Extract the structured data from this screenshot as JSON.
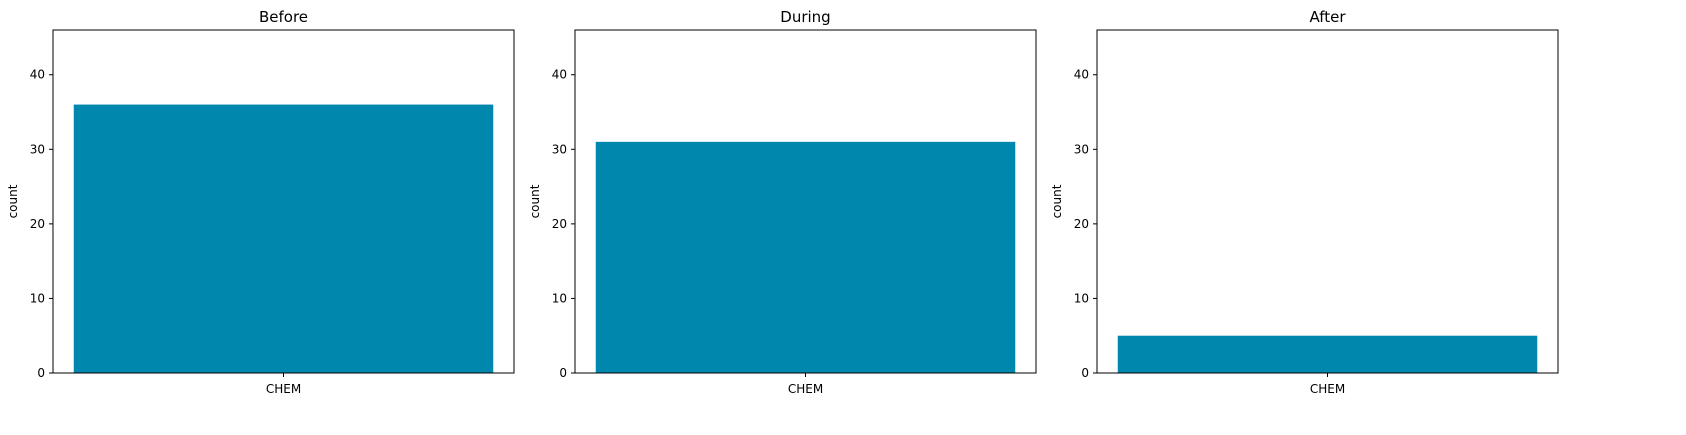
{
  "chart_data": [
    {
      "type": "bar",
      "title": "Before",
      "ylabel": "count",
      "xlabel": "",
      "categories": [
        "CHEM"
      ],
      "values": [
        36
      ],
      "ylim": [
        0,
        46
      ],
      "yticks": [
        0,
        10,
        20,
        30,
        40
      ],
      "color": "#0087ad",
      "grid": false
    },
    {
      "type": "bar",
      "title": "During",
      "ylabel": "count",
      "xlabel": "",
      "categories": [
        "CHEM"
      ],
      "values": [
        31
      ],
      "ylim": [
        0,
        46
      ],
      "yticks": [
        0,
        10,
        20,
        30,
        40
      ],
      "color": "#0087ad",
      "grid": false
    },
    {
      "type": "bar",
      "title": "After",
      "ylabel": "count",
      "xlabel": "",
      "categories": [
        "CHEM"
      ],
      "values": [
        5
      ],
      "ylim": [
        0,
        46
      ],
      "yticks": [
        0,
        10,
        20,
        30,
        40
      ],
      "color": "#0087ad",
      "grid": false
    }
  ]
}
